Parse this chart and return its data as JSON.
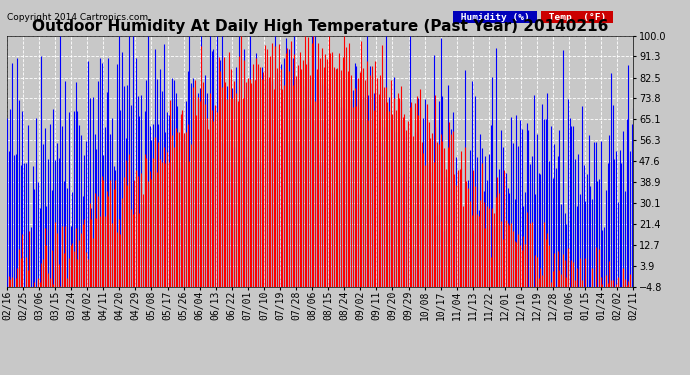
{
  "title": "Outdoor Humidity At Daily High Temperature (Past Year) 20140216",
  "copyright": "Copyright 2014 Cartronics.com",
  "background_color": "#c8c8c8",
  "plot_bg_color": "#c8c8c8",
  "ylim": [
    -4.8,
    100.0
  ],
  "yticks": [
    100.0,
    91.3,
    82.5,
    73.8,
    65.1,
    56.3,
    47.6,
    38.9,
    30.1,
    21.4,
    12.7,
    3.9,
    -4.8
  ],
  "xtick_labels": [
    "02/16",
    "02/25",
    "03/06",
    "03/15",
    "03/24",
    "04/02",
    "04/11",
    "04/20",
    "04/29",
    "05/08",
    "05/17",
    "05/26",
    "06/04",
    "06/13",
    "06/22",
    "07/01",
    "07/10",
    "07/19",
    "07/28",
    "08/06",
    "08/15",
    "08/24",
    "09/02",
    "09/11",
    "09/20",
    "09/29",
    "10/08",
    "10/17",
    "11/04",
    "11/13",
    "11/22",
    "12/01",
    "12/10",
    "12/19",
    "12/28",
    "01/06",
    "01/15",
    "01/24",
    "02/02",
    "02/11"
  ],
  "humidity_color": "#0000ff",
  "temp_color": "#ff0000",
  "black_color": "#000000",
  "grid_color": "#ffffff",
  "legend_humidity_bg": "#0000bb",
  "legend_temp_bg": "#cc0000",
  "title_fontsize": 11,
  "tick_fontsize": 7,
  "copyright_fontsize": 6.5
}
